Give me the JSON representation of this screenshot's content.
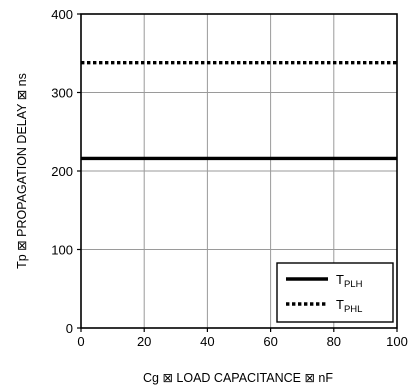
{
  "chart_data": {
    "type": "line",
    "title": "",
    "xlabel": "Cg ⊠ LOAD CAPACITANCE ⊠ nF",
    "ylabel": "Tp ⊠ PROPAGATION DELAY ⊠ ns",
    "xlim": [
      0,
      100
    ],
    "ylim": [
      0,
      400
    ],
    "x_ticks": [
      0,
      20,
      40,
      60,
      80,
      100
    ],
    "y_ticks": [
      0,
      100,
      200,
      300,
      400
    ],
    "grid": true,
    "legend_position": "bottom-right",
    "series": [
      {
        "name": "TPLH",
        "name_main": "T",
        "name_sub": "PLH",
        "style": "solid",
        "x": [
          0,
          100
        ],
        "y": [
          216,
          216
        ]
      },
      {
        "name": "TPHL",
        "name_main": "T",
        "name_sub": "PHL",
        "style": "dotted",
        "x": [
          0,
          100
        ],
        "y": [
          338,
          338
        ]
      }
    ],
    "colors": {
      "line": "#000000",
      "grid": "#9a9a9a"
    }
  }
}
